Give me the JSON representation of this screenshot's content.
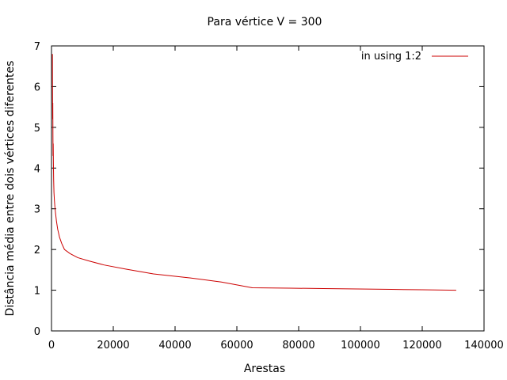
{
  "chart_data": {
    "type": "line",
    "title": "Para vértice V = 300",
    "xlabel": "Arestas",
    "ylabel": "Distância média entre dois vértices diferentes",
    "xlim": [
      0,
      140000
    ],
    "ylim": [
      0,
      7
    ],
    "xticks": [
      0,
      20000,
      40000,
      60000,
      80000,
      100000,
      120000,
      140000
    ],
    "yticks": [
      0,
      1,
      2,
      3,
      4,
      5,
      6,
      7
    ],
    "grid": false,
    "legend_position": "top-right",
    "series": [
      {
        "name": "in using 1:2",
        "color": "#cc0000",
        "x": [
          299,
          320,
          350,
          380,
          420,
          460,
          500,
          560,
          620,
          700,
          800,
          950,
          1100,
          1300,
          1600,
          2000,
          2600,
          3300,
          4200,
          6000,
          8500,
          12000,
          17000,
          24000,
          33000,
          45000,
          55000,
          65000,
          77000,
          88000,
          99000,
          110000,
          120000,
          131000
        ],
        "y": [
          6.8,
          6.1,
          5.7,
          5.2,
          5.6,
          4.9,
          4.3,
          4.6,
          4.1,
          3.7,
          3.4,
          3.2,
          3.05,
          2.9,
          2.7,
          2.5,
          2.3,
          2.15,
          2.0,
          1.9,
          1.8,
          1.72,
          1.62,
          1.52,
          1.4,
          1.3,
          1.2,
          1.06,
          1.05,
          1.04,
          1.03,
          1.02,
          1.01,
          1.0
        ]
      }
    ]
  }
}
